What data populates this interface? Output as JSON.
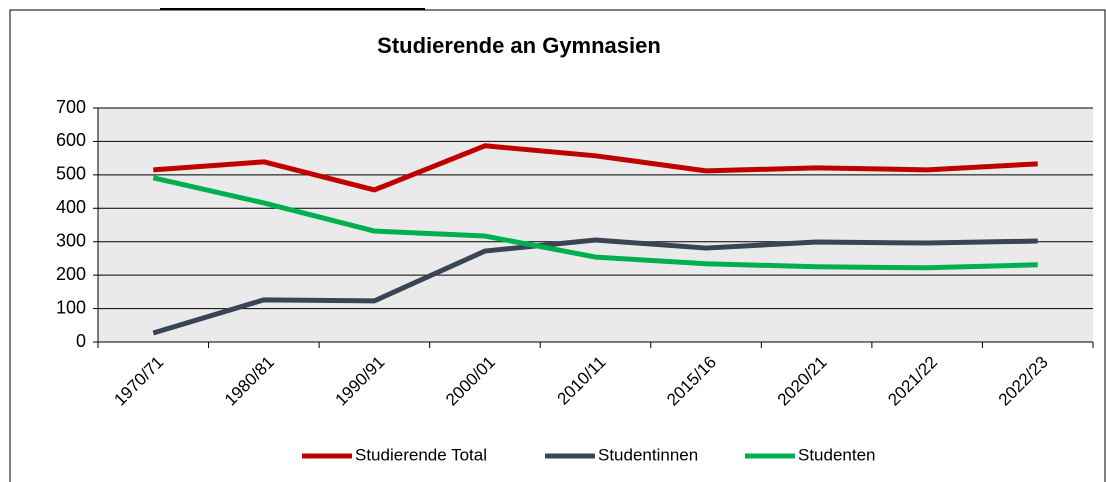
{
  "chart_data": {
    "type": "line",
    "title": "Studierende an Gymnasien",
    "categories": [
      "1970/71",
      "1980/81",
      "1990/91",
      "2000/01",
      "2010/11",
      "2015/16",
      "2020/21",
      "2021/22",
      "2022/23"
    ],
    "series": [
      {
        "name": "Studierende Total",
        "color": "#c00000",
        "values": [
          515,
          539,
          455,
          587,
          557,
          512,
          521,
          515,
          533
        ]
      },
      {
        "name": "Studentinnen",
        "color": "#3a4454",
        "values": [
          27,
          126,
          123,
          272,
          305,
          281,
          299,
          296,
          302
        ]
      },
      {
        "name": "Studenten",
        "color": "#00b050",
        "values": [
          491,
          416,
          332,
          317,
          254,
          234,
          225,
          222,
          231
        ]
      }
    ],
    "ylim": [
      0,
      700
    ],
    "yticks": [
      0,
      100,
      200,
      300,
      400,
      500,
      600,
      700
    ],
    "grid": true,
    "legend": "bottom"
  }
}
